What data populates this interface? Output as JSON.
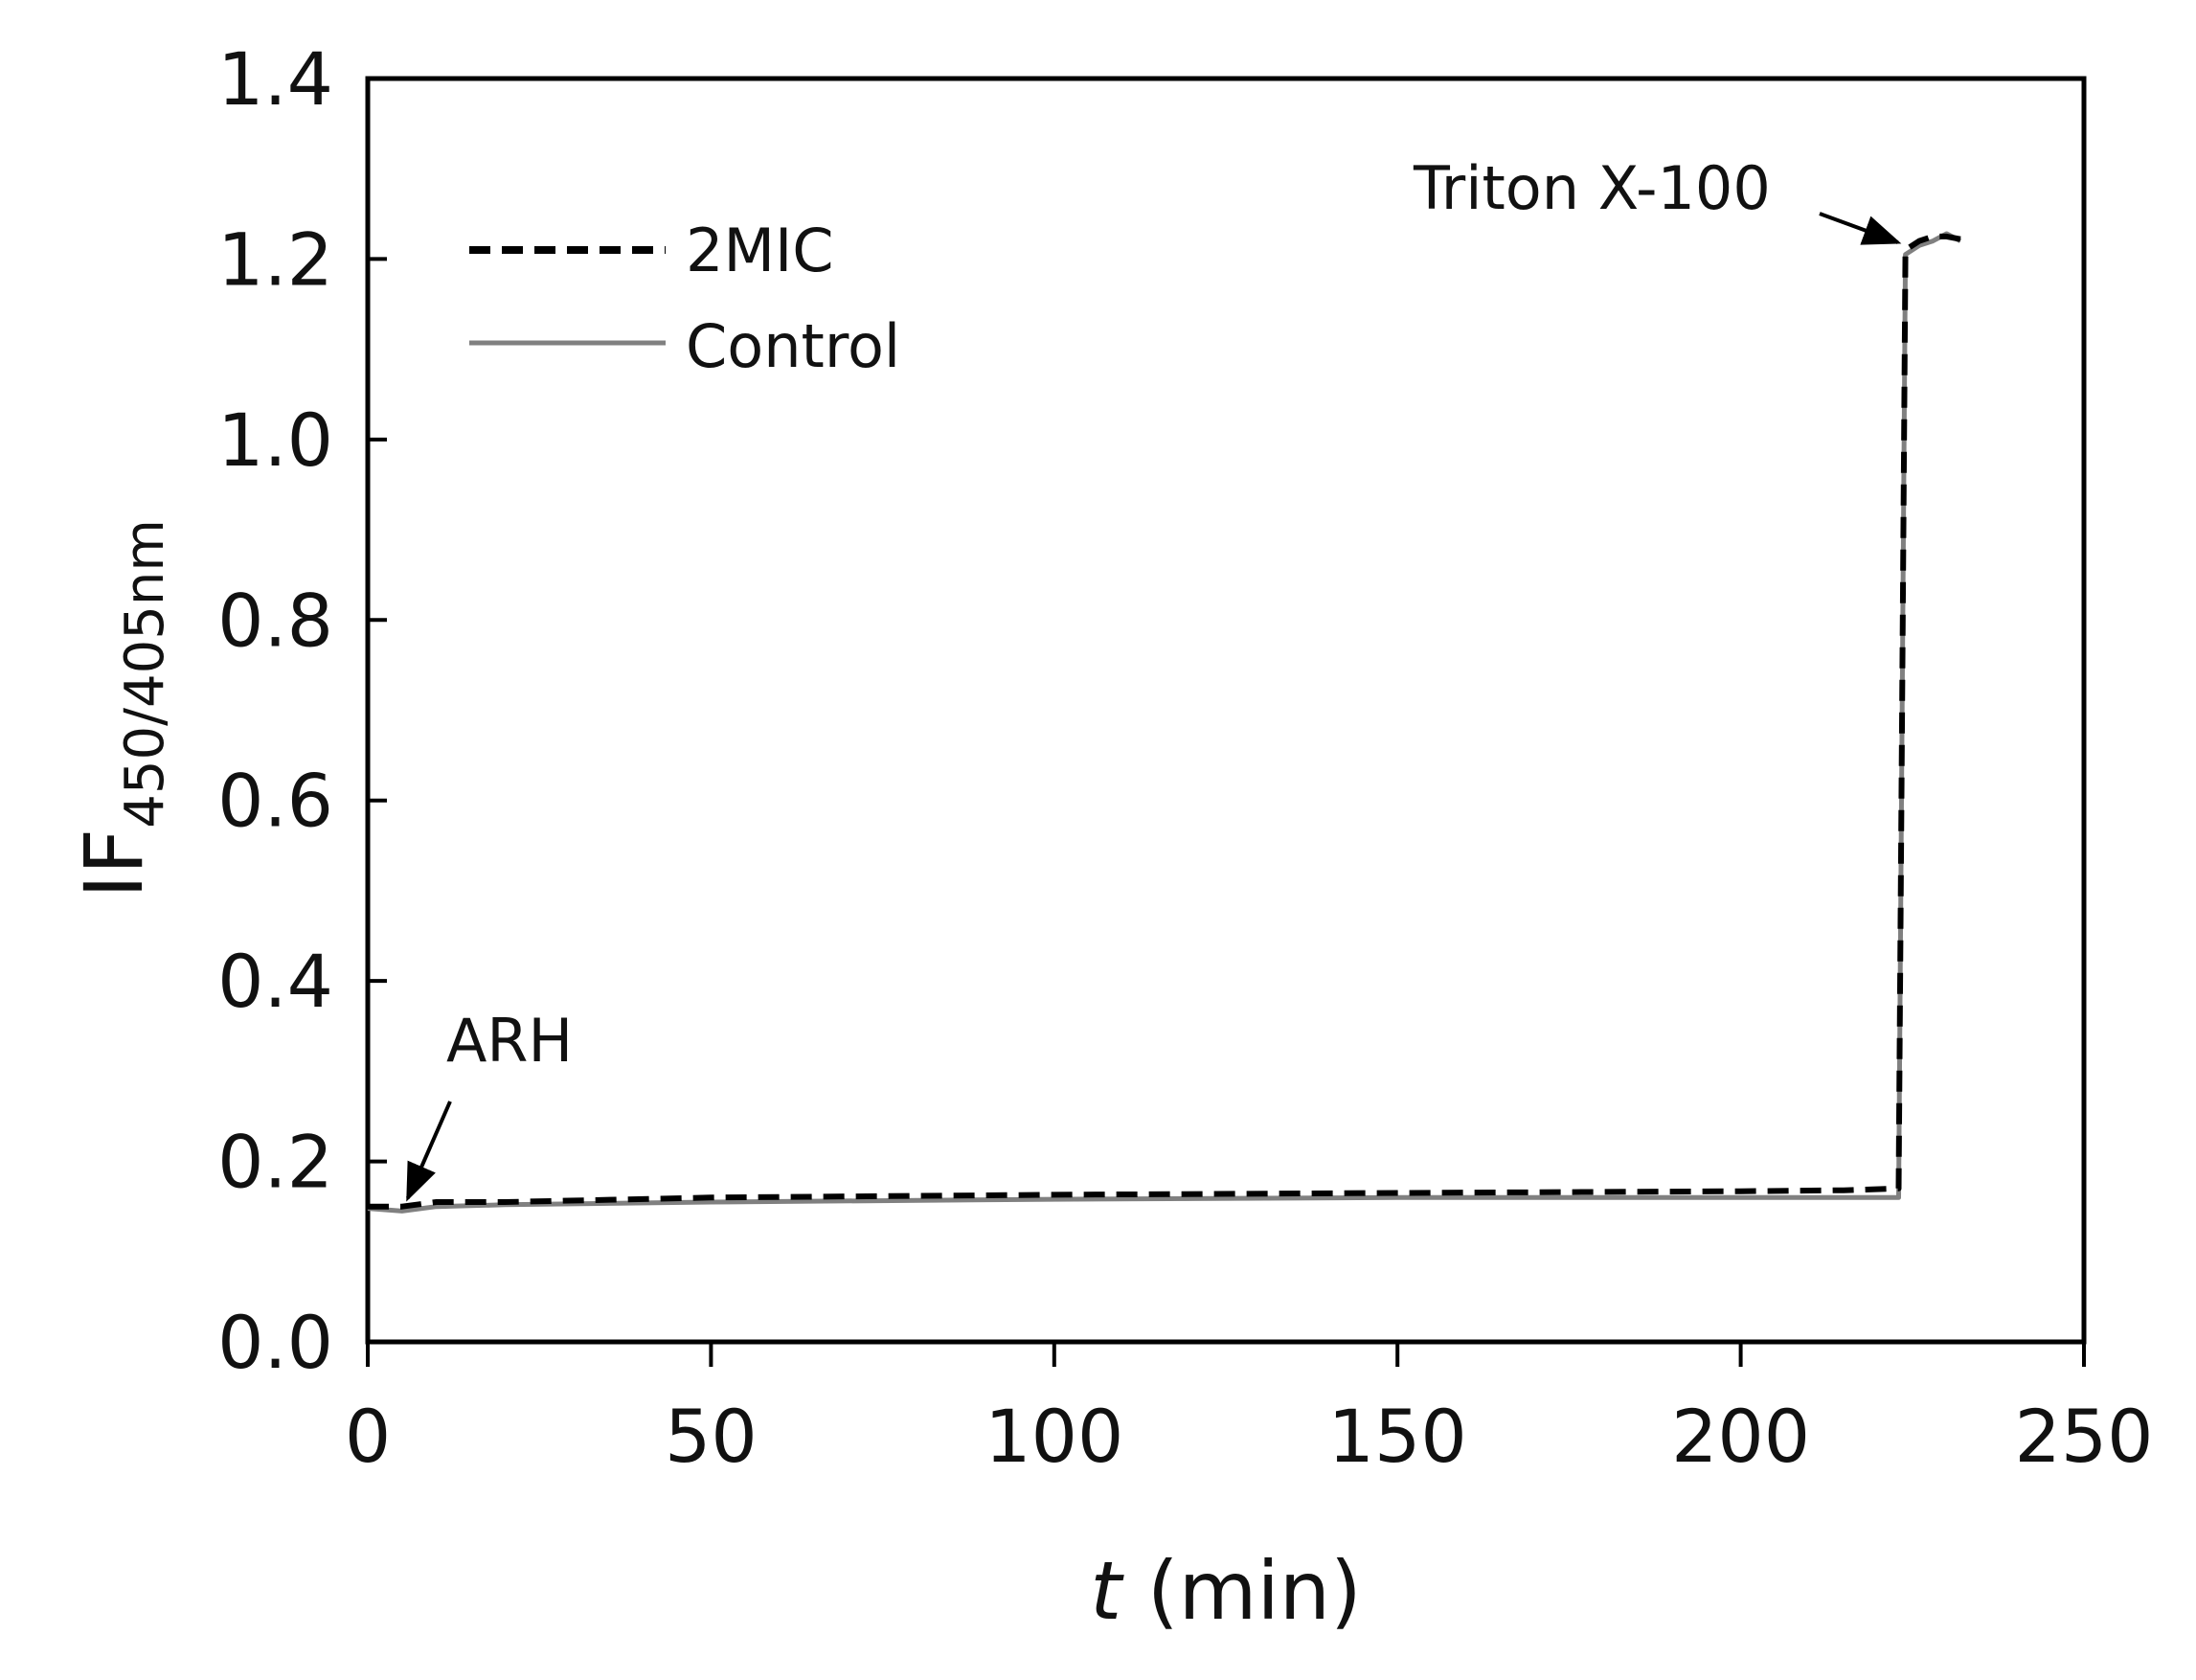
{
  "chart_data": {
    "type": "line",
    "xlabel_italic": "t",
    "xlabel_rest": " (min)",
    "ylabel_main": "IF",
    "ylabel_sub": "450/405nm",
    "xlim": [
      0,
      250
    ],
    "ylim": [
      0.0,
      1.4
    ],
    "x_ticks": [
      "0",
      "50",
      "100",
      "150",
      "200",
      "250"
    ],
    "y_ticks": [
      "0.0",
      "0.2",
      "0.4",
      "0.6",
      "0.8",
      "1.0",
      "1.2",
      "1.4"
    ],
    "grid": false,
    "legend_position": "top-left",
    "series": [
      {
        "name": "2MIC",
        "color": "#000000",
        "style": "dashed",
        "x": [
          0,
          5,
          10,
          20,
          50,
          100,
          150,
          200,
          215,
          223,
          224,
          226,
          228,
          230,
          232
        ],
        "y": [
          0.15,
          0.15,
          0.155,
          0.155,
          0.16,
          0.163,
          0.165,
          0.167,
          0.168,
          0.17,
          1.21,
          1.22,
          1.225,
          1.225,
          1.222
        ]
      },
      {
        "name": "Control",
        "color": "#808080",
        "style": "solid",
        "x": [
          0,
          5,
          10,
          20,
          50,
          100,
          150,
          200,
          215,
          223,
          224,
          226,
          228,
          230,
          232
        ],
        "y": [
          0.148,
          0.145,
          0.15,
          0.152,
          0.155,
          0.158,
          0.16,
          0.16,
          0.16,
          0.16,
          1.205,
          1.215,
          1.22,
          1.228,
          1.22
        ]
      }
    ],
    "annotations": [
      {
        "text": "ARH",
        "x": 5,
        "y": 0.155
      },
      {
        "text": "Triton X-100",
        "x": 224,
        "y": 1.21
      }
    ]
  }
}
